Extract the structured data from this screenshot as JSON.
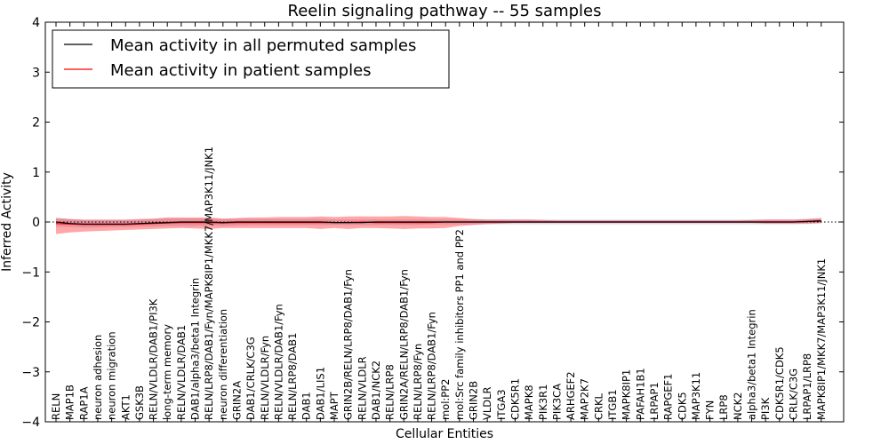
{
  "chart_data": {
    "type": "line",
    "title": "Reelin signaling pathway -- 55 samples",
    "xlabel": "Cellular Entities",
    "ylabel": "Inferred Activity",
    "ylim": [
      -4,
      4
    ],
    "yticks": [
      -4,
      -3,
      -2,
      -1,
      0,
      1,
      2,
      3,
      4
    ],
    "ytick_labels": [
      "−4",
      "−3",
      "−2",
      "−1",
      "0",
      "1",
      "2",
      "3",
      "4"
    ],
    "legend_position": "top-left",
    "categories": [
      "RELN",
      "MAP1B",
      "RAP1A",
      "neuron adhesion",
      "neuron migration",
      "AKT1",
      "GSK3B",
      "RELN/VLDLR/DAB1/PI3K",
      "long-term memory",
      "RELN/VLDLR/DAB1",
      "DAB1/alpha3/beta1 Integrin",
      "RELN/LRP8/DAB1/Fyn/MAPK8IP1/MKK7/MAP3K11/JNK1",
      "neuron differentiation",
      "GRIN2A",
      "DAB1/CRLK/C3G",
      "RELN/VLDLR/Fyn",
      "RELN/VLDLR/DAB1/Fyn",
      "RELN/LRP8/DAB1",
      "DAB1",
      "DAB1/LIS1",
      "MAPT",
      "GRIN2B/RELN/LRP8/DAB1/Fyn",
      "RELN/VLDLR",
      "DAB1/NCK2",
      "RELN/LRP8",
      "GRIN2A/RELN/LRP8/DAB1/Fyn",
      "RELN/LRP8/Fyn",
      "RELN/LRP8/DAB1/Fyn",
      "mol:PP2",
      "mol:Src family inhibitors PP1 and PP2",
      "GRIN2B",
      "VLDLR",
      "ITGA3",
      "CDK5R1",
      "MAPK8",
      "PIK3R1",
      "PIK3CA",
      "ARHGEF2",
      "MAP2K7",
      "CRKL",
      "ITGB1",
      "MAPK8IP1",
      "PAFAH1B1",
      "LRPAP1",
      "RAPGEF1",
      "CDK5",
      "MAP3K11",
      "FYN",
      "LRP8",
      "NCK2",
      "alpha3/beta1 Integrin",
      "PI3K",
      "CDK5R1/CDK5",
      "CRLK/C3G",
      "LRPAP1/LRP8",
      "MAPK8IP1/MKK7/MAP3K11/JNK1"
    ],
    "series": [
      {
        "name": "Mean activity in all permuted samples",
        "color": "#000000",
        "band_color": "#c8c8e6",
        "values": [
          0.0,
          -0.03,
          -0.04,
          -0.04,
          -0.04,
          -0.04,
          -0.03,
          -0.02,
          -0.01,
          0.0,
          0.0,
          0.0,
          -0.01,
          0.0,
          0.0,
          0.0,
          0.0,
          0.0,
          0.0,
          0.0,
          -0.01,
          -0.01,
          -0.01,
          0.0,
          0.0,
          0.0,
          0.0,
          0.0,
          0.0,
          0.0,
          0.0,
          0.0,
          0.0,
          0.0,
          0.0,
          0.0,
          0.0,
          0.0,
          0.0,
          0.0,
          0.0,
          0.0,
          0.0,
          0.0,
          0.0,
          0.0,
          0.0,
          0.0,
          0.0,
          0.0,
          0.0,
          0.0,
          0.0,
          0.0,
          0.01,
          0.02
        ],
        "lower": [
          -0.09,
          -0.1,
          -0.11,
          -0.11,
          -0.1,
          -0.1,
          -0.09,
          -0.09,
          -0.08,
          -0.08,
          -0.08,
          -0.07,
          -0.08,
          -0.07,
          -0.06,
          -0.06,
          -0.06,
          -0.06,
          -0.06,
          -0.06,
          -0.06,
          -0.06,
          -0.06,
          -0.06,
          -0.06,
          -0.06,
          -0.06,
          -0.05,
          -0.05,
          -0.05,
          -0.05,
          -0.05,
          -0.05,
          -0.05,
          -0.05,
          -0.05,
          -0.05,
          -0.05,
          -0.05,
          -0.05,
          -0.05,
          -0.05,
          -0.05,
          -0.05,
          -0.05,
          -0.05,
          -0.05,
          -0.05,
          -0.05,
          -0.05,
          -0.05,
          -0.05,
          -0.05,
          -0.05,
          -0.04,
          -0.03
        ],
        "upper": [
          0.08,
          0.06,
          0.04,
          0.04,
          0.04,
          0.04,
          0.05,
          0.06,
          0.07,
          0.07,
          0.07,
          0.07,
          0.06,
          0.06,
          0.06,
          0.06,
          0.06,
          0.06,
          0.06,
          0.06,
          0.05,
          0.05,
          0.05,
          0.05,
          0.05,
          0.05,
          0.05,
          0.05,
          0.05,
          0.05,
          0.05,
          0.05,
          0.05,
          0.05,
          0.05,
          0.05,
          0.05,
          0.05,
          0.05,
          0.05,
          0.05,
          0.05,
          0.05,
          0.05,
          0.05,
          0.05,
          0.05,
          0.05,
          0.05,
          0.05,
          0.05,
          0.05,
          0.05,
          0.05,
          0.06,
          0.07
        ]
      },
      {
        "name": "Mean activity in patient samples",
        "color": "#ff0000",
        "band_color": "#ff0000",
        "values": [
          -0.03,
          -0.04,
          -0.05,
          -0.05,
          -0.05,
          -0.05,
          -0.04,
          -0.03,
          -0.02,
          -0.01,
          -0.01,
          -0.01,
          -0.02,
          -0.01,
          -0.01,
          -0.01,
          -0.01,
          -0.01,
          -0.01,
          -0.01,
          -0.01,
          -0.01,
          0.0,
          -0.01,
          -0.01,
          -0.01,
          -0.01,
          -0.01,
          0.0,
          0.0,
          0.0,
          0.0,
          0.0,
          0.0,
          0.0,
          0.0,
          0.0,
          0.0,
          0.0,
          0.0,
          0.0,
          0.0,
          0.0,
          0.0,
          0.0,
          0.0,
          0.0,
          0.0,
          0.0,
          0.0,
          0.0,
          0.0,
          0.0,
          0.0,
          0.01,
          0.03
        ],
        "lower": [
          -0.24,
          -0.21,
          -0.19,
          -0.18,
          -0.17,
          -0.16,
          -0.15,
          -0.14,
          -0.13,
          -0.12,
          -0.13,
          -0.14,
          -0.12,
          -0.12,
          -0.12,
          -0.12,
          -0.12,
          -0.12,
          -0.12,
          -0.14,
          -0.12,
          -0.14,
          -0.12,
          -0.12,
          -0.13,
          -0.14,
          -0.13,
          -0.13,
          -0.12,
          -0.08,
          -0.06,
          -0.04,
          -0.03,
          -0.02,
          -0.02,
          -0.02,
          -0.02,
          -0.02,
          -0.02,
          -0.02,
          -0.02,
          -0.02,
          -0.02,
          -0.02,
          -0.02,
          -0.02,
          -0.02,
          -0.02,
          -0.02,
          -0.02,
          -0.02,
          -0.03,
          -0.03,
          -0.03,
          -0.03,
          -0.02
        ],
        "upper": [
          0.08,
          0.06,
          0.05,
          0.05,
          0.05,
          0.05,
          0.06,
          0.07,
          0.09,
          0.09,
          0.09,
          0.09,
          0.07,
          0.08,
          0.09,
          0.09,
          0.1,
          0.1,
          0.1,
          0.11,
          0.1,
          0.11,
          0.11,
          0.11,
          0.11,
          0.12,
          0.11,
          0.1,
          0.1,
          0.08,
          0.06,
          0.05,
          0.05,
          0.05,
          0.05,
          0.04,
          0.03,
          0.03,
          0.03,
          0.03,
          0.03,
          0.03,
          0.03,
          0.03,
          0.03,
          0.03,
          0.03,
          0.03,
          0.03,
          0.03,
          0.04,
          0.05,
          0.05,
          0.05,
          0.06,
          0.08
        ]
      }
    ],
    "zero_line": true
  }
}
